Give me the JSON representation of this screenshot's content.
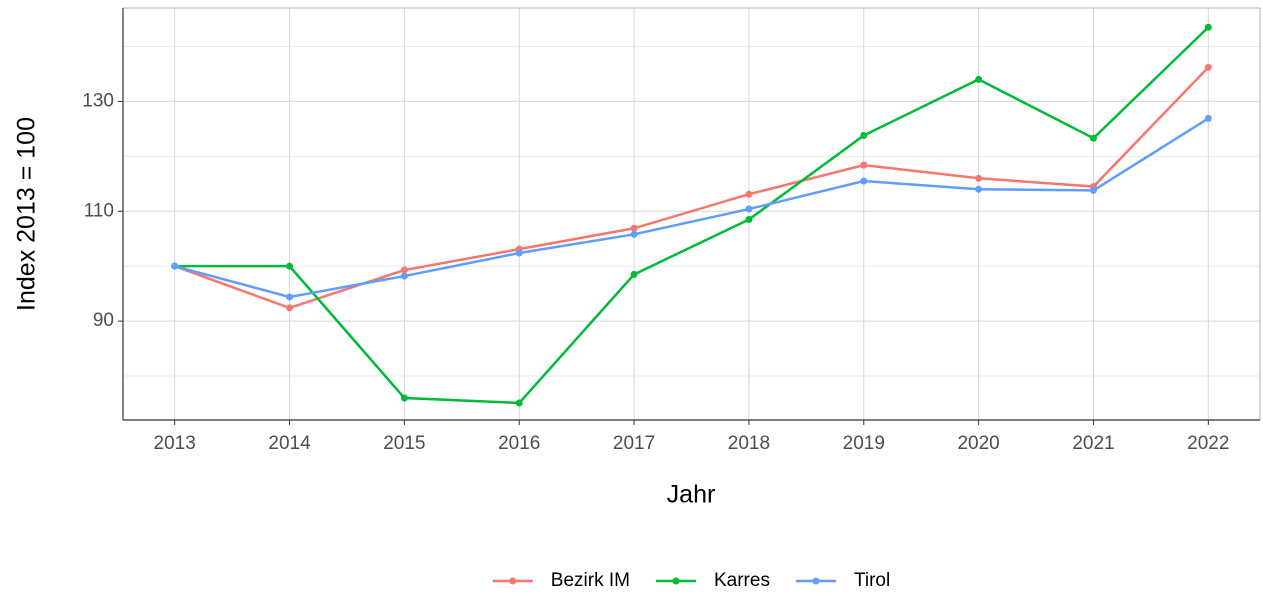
{
  "chart_data": {
    "type": "line",
    "x_label": "Jahr",
    "y_label": "Index  2013  = 100",
    "x": [
      2013,
      2014,
      2015,
      2016,
      2017,
      2018,
      2019,
      2020,
      2021,
      2022
    ],
    "series": [
      {
        "name": "Bezirk IM",
        "color": "#F8766D",
        "values": [
          100,
          92.4,
          99.3,
          103.1,
          106.9,
          113.1,
          118.4,
          116,
          114.5,
          136.2
        ]
      },
      {
        "name": "Karres",
        "color": "#00BA38",
        "values": [
          100,
          100,
          76,
          75.1,
          98.5,
          108.5,
          123.8,
          134,
          123.3,
          143.5
        ]
      },
      {
        "name": "Tirol",
        "color": "#619CFF",
        "values": [
          100,
          94.4,
          98.2,
          102.4,
          105.8,
          110.4,
          115.5,
          114,
          113.8,
          126.9
        ]
      }
    ],
    "xlim": [
      2012.55,
      2022.45
    ],
    "xticks": [
      2013,
      2014,
      2015,
      2016,
      2017,
      2018,
      2019,
      2020,
      2021,
      2022
    ],
    "ylim": [
      72,
      147
    ],
    "yticks": [
      90,
      110,
      130
    ],
    "minor_yticks": [
      80,
      100,
      120,
      140
    ],
    "grid": true,
    "legend": "bottom"
  }
}
